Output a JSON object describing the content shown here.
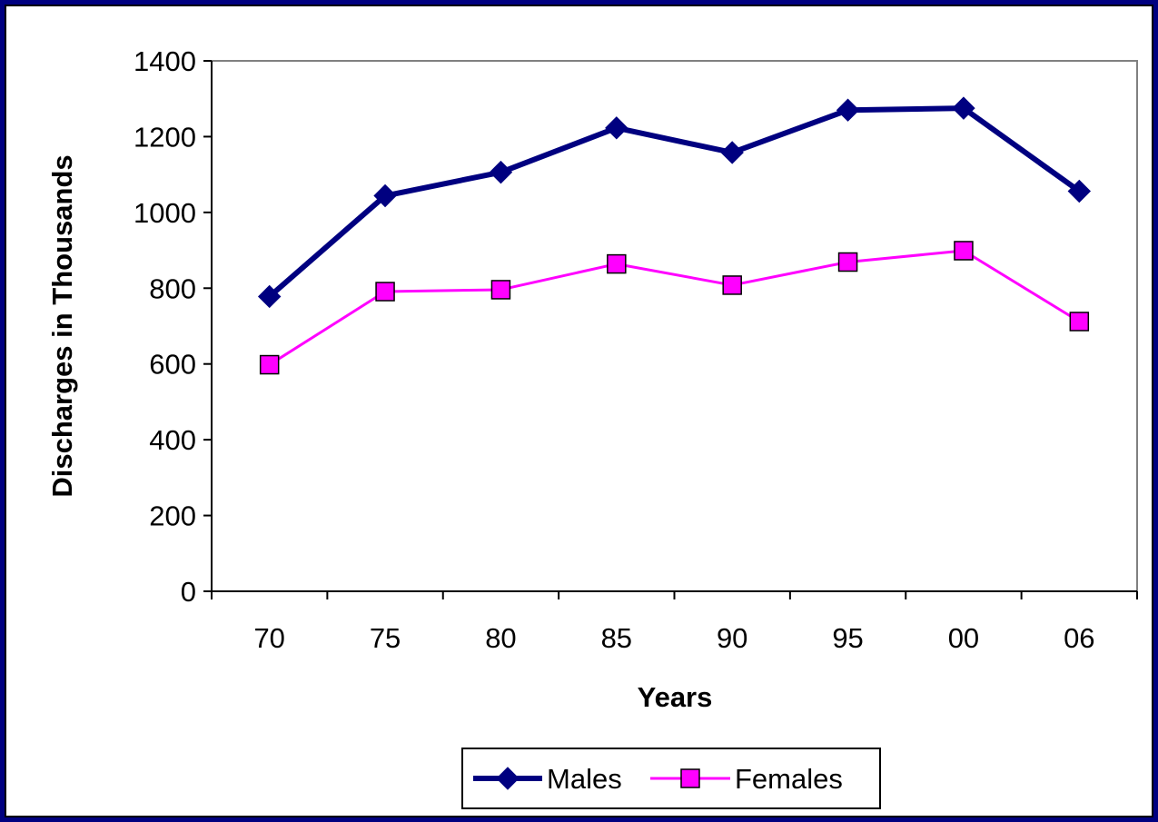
{
  "chart_data": {
    "type": "line",
    "title": "",
    "xlabel": "Years",
    "ylabel": "Discharges in Thousands",
    "categories": [
      "70",
      "75",
      "80",
      "85",
      "90",
      "95",
      "00",
      "06"
    ],
    "yticks": [
      "0",
      "200",
      "400",
      "600",
      "800",
      "1000",
      "1200",
      "1400"
    ],
    "ylim": [
      0,
      1400
    ],
    "grid": false,
    "legend_position": "bottom",
    "series": [
      {
        "name": "Males",
        "values": [
          778,
          1044,
          1106,
          1223,
          1158,
          1270,
          1275,
          1056
        ],
        "color": "#000080",
        "marker": "diamond"
      },
      {
        "name": "Females",
        "values": [
          598,
          791,
          796,
          864,
          808,
          869,
          899,
          712
        ],
        "color": "#FF00FF",
        "marker": "square"
      }
    ]
  }
}
